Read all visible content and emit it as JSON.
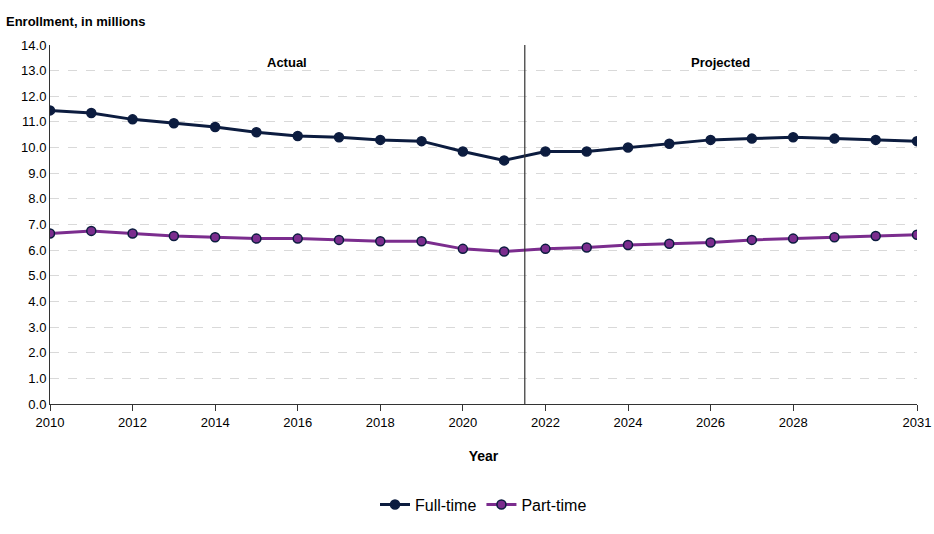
{
  "chart_data": {
    "type": "line",
    "ylabel": "Enrollment, in millions",
    "xlabel": "Year",
    "x": [
      2010,
      2011,
      2012,
      2013,
      2014,
      2015,
      2016,
      2017,
      2018,
      2019,
      2020,
      2021,
      2022,
      2023,
      2024,
      2025,
      2026,
      2027,
      2028,
      2029,
      2030,
      2031
    ],
    "series": [
      {
        "name": "Full-time",
        "color": "#0c1c3f",
        "values": [
          11.45,
          11.35,
          11.1,
          10.95,
          10.8,
          10.6,
          10.45,
          10.4,
          10.3,
          10.25,
          9.85,
          9.5,
          9.85,
          9.85,
          10.0,
          10.15,
          10.3,
          10.35,
          10.4,
          10.35,
          10.3,
          10.25
        ]
      },
      {
        "name": "Part-time",
        "color": "#7b2d8e",
        "values": [
          6.65,
          6.75,
          6.65,
          6.55,
          6.5,
          6.45,
          6.45,
          6.4,
          6.35,
          6.35,
          6.05,
          5.95,
          6.05,
          6.1,
          6.2,
          6.25,
          6.3,
          6.4,
          6.45,
          6.5,
          6.55,
          6.6
        ]
      }
    ],
    "xlim": [
      2010,
      2031
    ],
    "xticks": [
      2010,
      2012,
      2014,
      2016,
      2018,
      2020,
      2022,
      2024,
      2026,
      2028,
      2031
    ],
    "ylim": [
      0,
      14
    ],
    "yticks": [
      {
        "value": 0,
        "label": "0.0"
      },
      {
        "value": 1,
        "label": "1.0"
      },
      {
        "value": 2,
        "label": "2.0"
      },
      {
        "value": 3,
        "label": "3.0"
      },
      {
        "value": 4,
        "label": "4.0"
      },
      {
        "value": 5,
        "label": "5.0"
      },
      {
        "value": 6,
        "label": "6.0"
      },
      {
        "value": 7,
        "label": "7.0"
      },
      {
        "value": 8,
        "label": "8.0"
      },
      {
        "value": 9,
        "label": "9.0"
      },
      {
        "value": 10,
        "label": "10.0"
      },
      {
        "value": 11,
        "label": "11.0"
      },
      {
        "value": 12,
        "label": "12.0"
      },
      {
        "value": 13,
        "label": "13.0"
      },
      {
        "value": 14,
        "label": "14.0"
      }
    ],
    "divider_x": 2021.5,
    "annotations": [
      "Actual",
      "Projected"
    ],
    "grid": true,
    "legend": "bottom",
    "marker": "circle"
  }
}
